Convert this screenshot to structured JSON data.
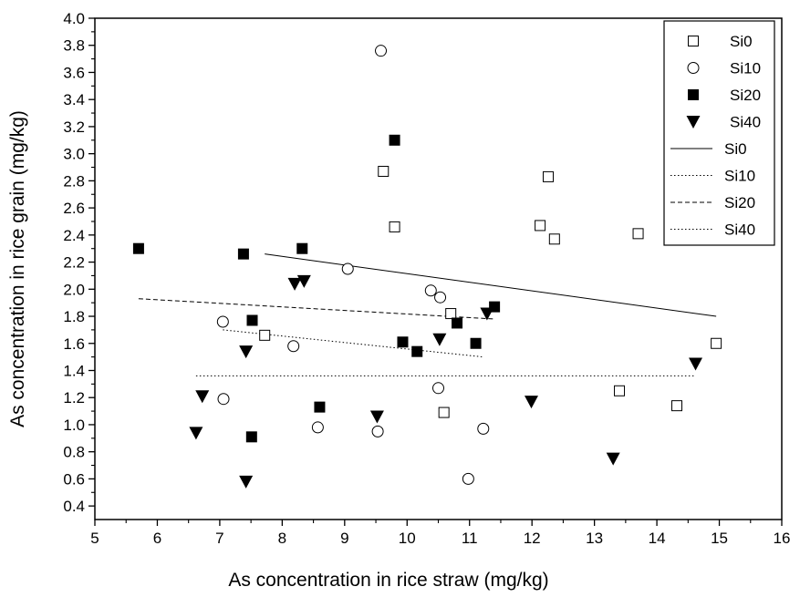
{
  "chart_data": {
    "type": "scatter",
    "xlabel": "As concentration in rice straw (mg/kg)",
    "ylabel": "As concentration in rice grain (mg/kg)",
    "xlim": [
      5,
      16
    ],
    "ylim": [
      0.3,
      4.0
    ],
    "xticks": [
      5,
      6,
      7,
      8,
      9,
      10,
      11,
      12,
      13,
      14,
      15,
      16
    ],
    "yticks": [
      0.4,
      0.6,
      0.8,
      1.0,
      1.2,
      1.4,
      1.6,
      1.8,
      2.0,
      2.2,
      2.4,
      2.6,
      2.8,
      3.0,
      3.2,
      3.4,
      3.6,
      3.8,
      4.0
    ],
    "grid": false,
    "legend_position": "top-right",
    "series": [
      {
        "name": "Si0",
        "marker": "square-open",
        "color": "#000000",
        "points": [
          [
            9.62,
            2.87
          ],
          [
            9.8,
            2.46
          ],
          [
            12.26,
            2.83
          ],
          [
            12.13,
            2.47
          ],
          [
            12.36,
            2.37
          ],
          [
            13.7,
            2.41
          ],
          [
            7.72,
            1.66
          ],
          [
            10.7,
            1.82
          ],
          [
            10.59,
            1.09
          ],
          [
            13.4,
            1.25
          ],
          [
            14.32,
            1.14
          ],
          [
            14.95,
            1.6
          ]
        ]
      },
      {
        "name": "Si10",
        "marker": "circle-open",
        "color": "#000000",
        "points": [
          [
            9.58,
            3.76
          ],
          [
            9.05,
            2.15
          ],
          [
            10.38,
            1.99
          ],
          [
            10.53,
            1.94
          ],
          [
            7.05,
            1.76
          ],
          [
            8.18,
            1.58
          ],
          [
            7.06,
            1.19
          ],
          [
            10.5,
            1.27
          ],
          [
            8.57,
            0.98
          ],
          [
            9.53,
            0.95
          ],
          [
            11.22,
            0.97
          ],
          [
            10.98,
            0.6
          ]
        ]
      },
      {
        "name": "Si20",
        "marker": "square-filled",
        "color": "#000000",
        "points": [
          [
            5.7,
            2.3
          ],
          [
            7.38,
            2.26
          ],
          [
            8.32,
            2.3
          ],
          [
            9.8,
            3.1
          ],
          [
            7.52,
            1.77
          ],
          [
            9.93,
            1.61
          ],
          [
            10.16,
            1.54
          ],
          [
            10.8,
            1.75
          ],
          [
            11.4,
            1.87
          ],
          [
            11.1,
            1.6
          ],
          [
            8.6,
            1.13
          ],
          [
            7.51,
            0.91
          ]
        ]
      },
      {
        "name": "Si40",
        "marker": "triangle-down-filled",
        "color": "#000000",
        "points": [
          [
            8.2,
            2.04
          ],
          [
            8.35,
            2.06
          ],
          [
            7.42,
            1.54
          ],
          [
            6.72,
            1.21
          ],
          [
            6.62,
            0.94
          ],
          [
            7.42,
            0.58
          ],
          [
            9.52,
            1.06
          ],
          [
            10.52,
            1.63
          ],
          [
            11.28,
            1.82
          ],
          [
            11.99,
            1.17
          ],
          [
            13.3,
            0.75
          ],
          [
            14.62,
            1.45
          ]
        ]
      }
    ],
    "fit_lines": [
      {
        "name": "Si0",
        "style": "solid",
        "x": [
          7.72,
          14.95
        ],
        "y": [
          2.26,
          1.8
        ]
      },
      {
        "name": "Si10",
        "style": "dotted",
        "x": [
          7.05,
          11.22
        ],
        "y": [
          1.7,
          1.5
        ]
      },
      {
        "name": "Si20",
        "style": "dashed",
        "x": [
          5.7,
          11.4
        ],
        "y": [
          1.93,
          1.78
        ]
      },
      {
        "name": "Si40",
        "style": "dotted",
        "x": [
          6.62,
          14.62
        ],
        "y": [
          1.36,
          1.36
        ]
      }
    ]
  }
}
